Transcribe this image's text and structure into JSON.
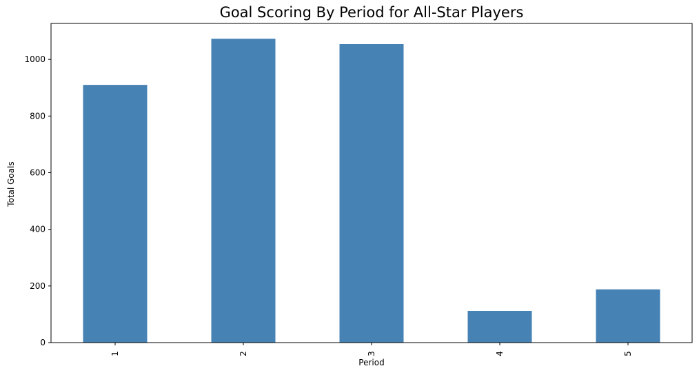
{
  "chart_data": {
    "type": "bar",
    "title": "Goal Scoring By Period for All-Star Players",
    "xlabel": "Period",
    "ylabel": "Total Goals",
    "categories": [
      "1",
      "2",
      "3",
      "4",
      "5"
    ],
    "values": [
      910,
      1073,
      1054,
      112,
      188
    ],
    "ylim": [
      0,
      1127
    ],
    "yticks": [
      0,
      200,
      400,
      600,
      800,
      1000
    ],
    "bar_color": "#4682b4",
    "grid": false,
    "legend": "none",
    "xtick_rotation": "vertical"
  }
}
